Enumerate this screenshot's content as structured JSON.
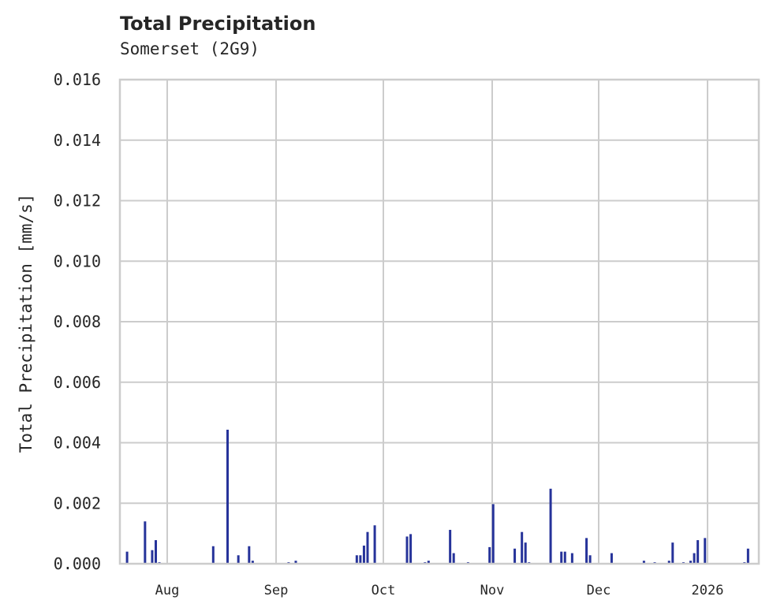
{
  "header": {
    "title": "Total Precipitation",
    "subtitle": "Somerset (2G9)"
  },
  "chart_data": {
    "type": "bar",
    "title": "Total Precipitation",
    "subtitle": "Somerset (2G9)",
    "xlabel": "",
    "ylabel": "Total Precipitation [mm/s]",
    "ylim": [
      0,
      0.016
    ],
    "yticks": [
      "0.000",
      "0.002",
      "0.004",
      "0.006",
      "0.008",
      "0.010",
      "0.012",
      "0.014",
      "0.016"
    ],
    "xticks": [
      "Aug",
      "Sep",
      "Oct",
      "Nov",
      "Dec",
      "2026"
    ],
    "grid": true,
    "color": "#26339a",
    "x_range": [
      "2025-07-19",
      "2026-01-13"
    ],
    "series": [
      {
        "name": "Total Precipitation",
        "points": [
          {
            "date": "2025-07-21",
            "value": 0.0004
          },
          {
            "date": "2025-07-26",
            "value": 0.0014
          },
          {
            "date": "2025-07-28",
            "value": 0.00045
          },
          {
            "date": "2025-07-29",
            "value": 0.00078
          },
          {
            "date": "2025-07-30",
            "value": 5e-05
          },
          {
            "date": "2025-08-14",
            "value": 0.00058
          },
          {
            "date": "2025-08-18",
            "value": 0.00443
          },
          {
            "date": "2025-08-21",
            "value": 0.00028
          },
          {
            "date": "2025-08-24",
            "value": 0.00058
          },
          {
            "date": "2025-08-25",
            "value": 0.0001
          },
          {
            "date": "2025-09-04",
            "value": 5e-05
          },
          {
            "date": "2025-09-06",
            "value": 0.0001
          },
          {
            "date": "2025-09-23",
            "value": 0.00028
          },
          {
            "date": "2025-09-24",
            "value": 0.00028
          },
          {
            "date": "2025-09-25",
            "value": 0.0006
          },
          {
            "date": "2025-09-26",
            "value": 0.00105
          },
          {
            "date": "2025-09-28",
            "value": 0.00127
          },
          {
            "date": "2025-10-07",
            "value": 0.0009
          },
          {
            "date": "2025-10-08",
            "value": 0.00098
          },
          {
            "date": "2025-10-12",
            "value": 5e-05
          },
          {
            "date": "2025-10-13",
            "value": 0.0001
          },
          {
            "date": "2025-10-19",
            "value": 0.00112
          },
          {
            "date": "2025-10-20",
            "value": 0.00035
          },
          {
            "date": "2025-10-24",
            "value": 5e-05
          },
          {
            "date": "2025-10-30",
            "value": 0.00055
          },
          {
            "date": "2025-10-31",
            "value": 0.00197
          },
          {
            "date": "2025-11-06",
            "value": 0.0005
          },
          {
            "date": "2025-11-08",
            "value": 0.00105
          },
          {
            "date": "2025-11-09",
            "value": 0.0007
          },
          {
            "date": "2025-11-10",
            "value": 5e-05
          },
          {
            "date": "2025-11-16",
            "value": 0.00248
          },
          {
            "date": "2025-11-19",
            "value": 0.0004
          },
          {
            "date": "2025-11-20",
            "value": 0.0004
          },
          {
            "date": "2025-11-22",
            "value": 0.00035
          },
          {
            "date": "2025-11-26",
            "value": 0.00085
          },
          {
            "date": "2025-11-27",
            "value": 0.00028
          },
          {
            "date": "2025-12-03",
            "value": 0.00035
          },
          {
            "date": "2025-12-12",
            "value": 0.0001
          },
          {
            "date": "2025-12-15",
            "value": 5e-05
          },
          {
            "date": "2025-12-19",
            "value": 0.0001
          },
          {
            "date": "2025-12-20",
            "value": 0.0007
          },
          {
            "date": "2025-12-23",
            "value": 5e-05
          },
          {
            "date": "2025-12-25",
            "value": 0.0001
          },
          {
            "date": "2025-12-26",
            "value": 0.00035
          },
          {
            "date": "2025-12-27",
            "value": 0.00078
          },
          {
            "date": "2025-12-29",
            "value": 0.00085
          },
          {
            "date": "2026-01-09",
            "value": 5e-05
          },
          {
            "date": "2026-01-10",
            "value": 0.0005
          }
        ]
      }
    ]
  }
}
